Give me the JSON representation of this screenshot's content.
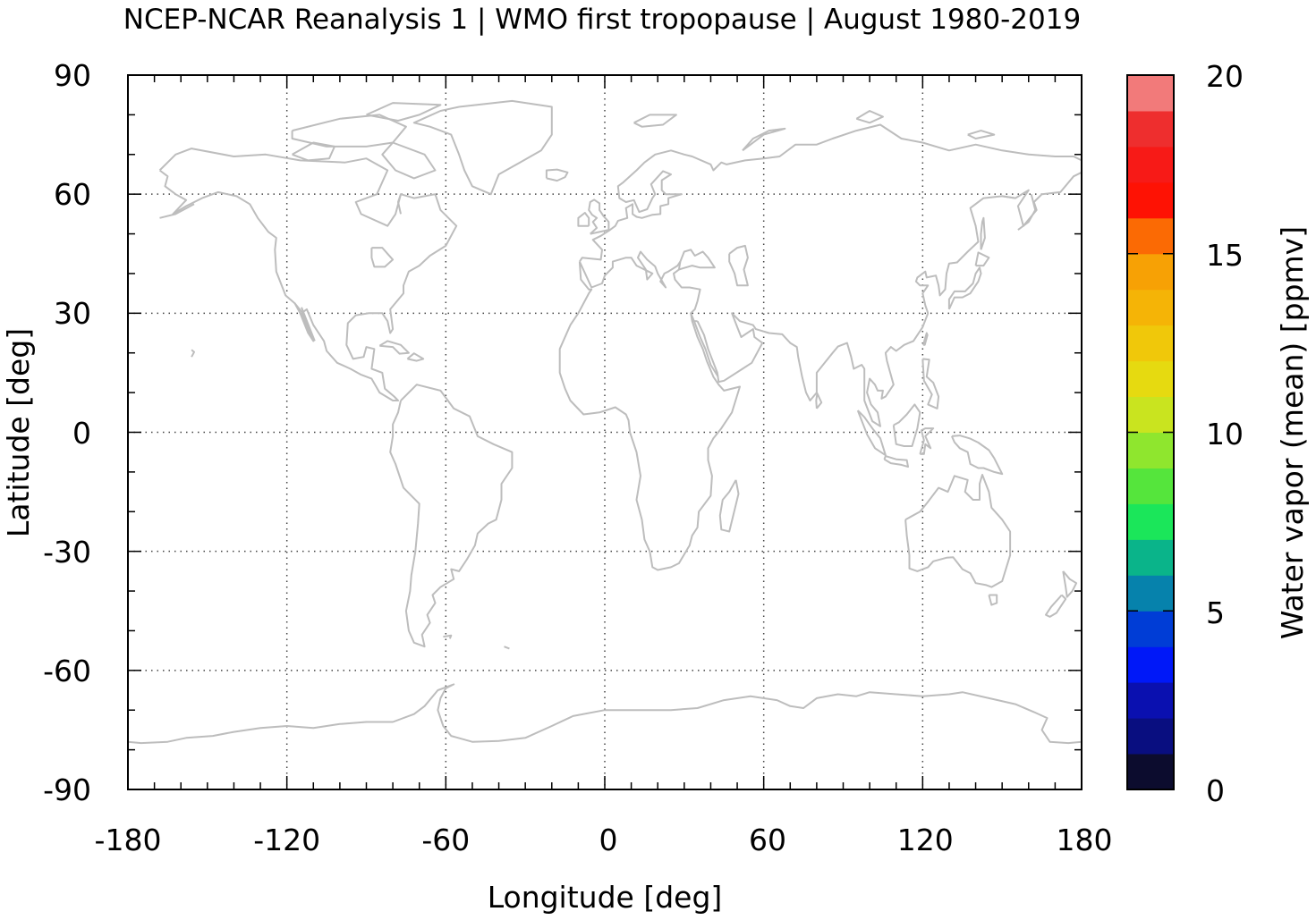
{
  "title": "NCEP-NCAR Reanalysis 1 | WMO first tropopause | August 1980-2019",
  "xlabel": "Longitude [deg]",
  "ylabel": "Latitude [deg]",
  "xticks": [
    "-180",
    "-120",
    "-60",
    "0",
    "60",
    "120",
    "180"
  ],
  "yticks": [
    "90",
    "60",
    "30",
    "0",
    "-30",
    "-60",
    "-90"
  ],
  "xlim": [
    -180,
    180
  ],
  "ylim": [
    -90,
    90
  ],
  "grid": true,
  "coastline_color": "#bdbdbd",
  "colorbar": {
    "label": "Water vapor (mean) [ppmv]",
    "ticks": [
      "20",
      "15",
      "10",
      "5",
      "0"
    ],
    "range": [
      0,
      20
    ],
    "step": 1,
    "colors": [
      "#0c0c2e",
      "#090e80",
      "#0a10b0",
      "#0018f8",
      "#003dd6",
      "#0682ac",
      "#0ab48a",
      "#1be65a",
      "#55e53c",
      "#8fe62e",
      "#c9e41f",
      "#e6da10",
      "#f0c80a",
      "#f5b406",
      "#f7a105",
      "#fb6a04",
      "#fe1204",
      "#f71a17",
      "#ee2e2e",
      "#f27a7a",
      "#fdc8c8"
    ]
  },
  "chart_data": {
    "type": "heatmap",
    "title": "NCEP-NCAR Reanalysis 1 | WMO first tropopause | August 1980-2019",
    "xlabel": "Longitude [deg]",
    "ylabel": "Latitude [deg]",
    "xlim": [
      -180,
      180
    ],
    "ylim": [
      -90,
      90
    ],
    "values": [],
    "colorbar_range": [
      0,
      20
    ],
    "colorbar_label": "Water vapor (mean) [ppmv]"
  }
}
